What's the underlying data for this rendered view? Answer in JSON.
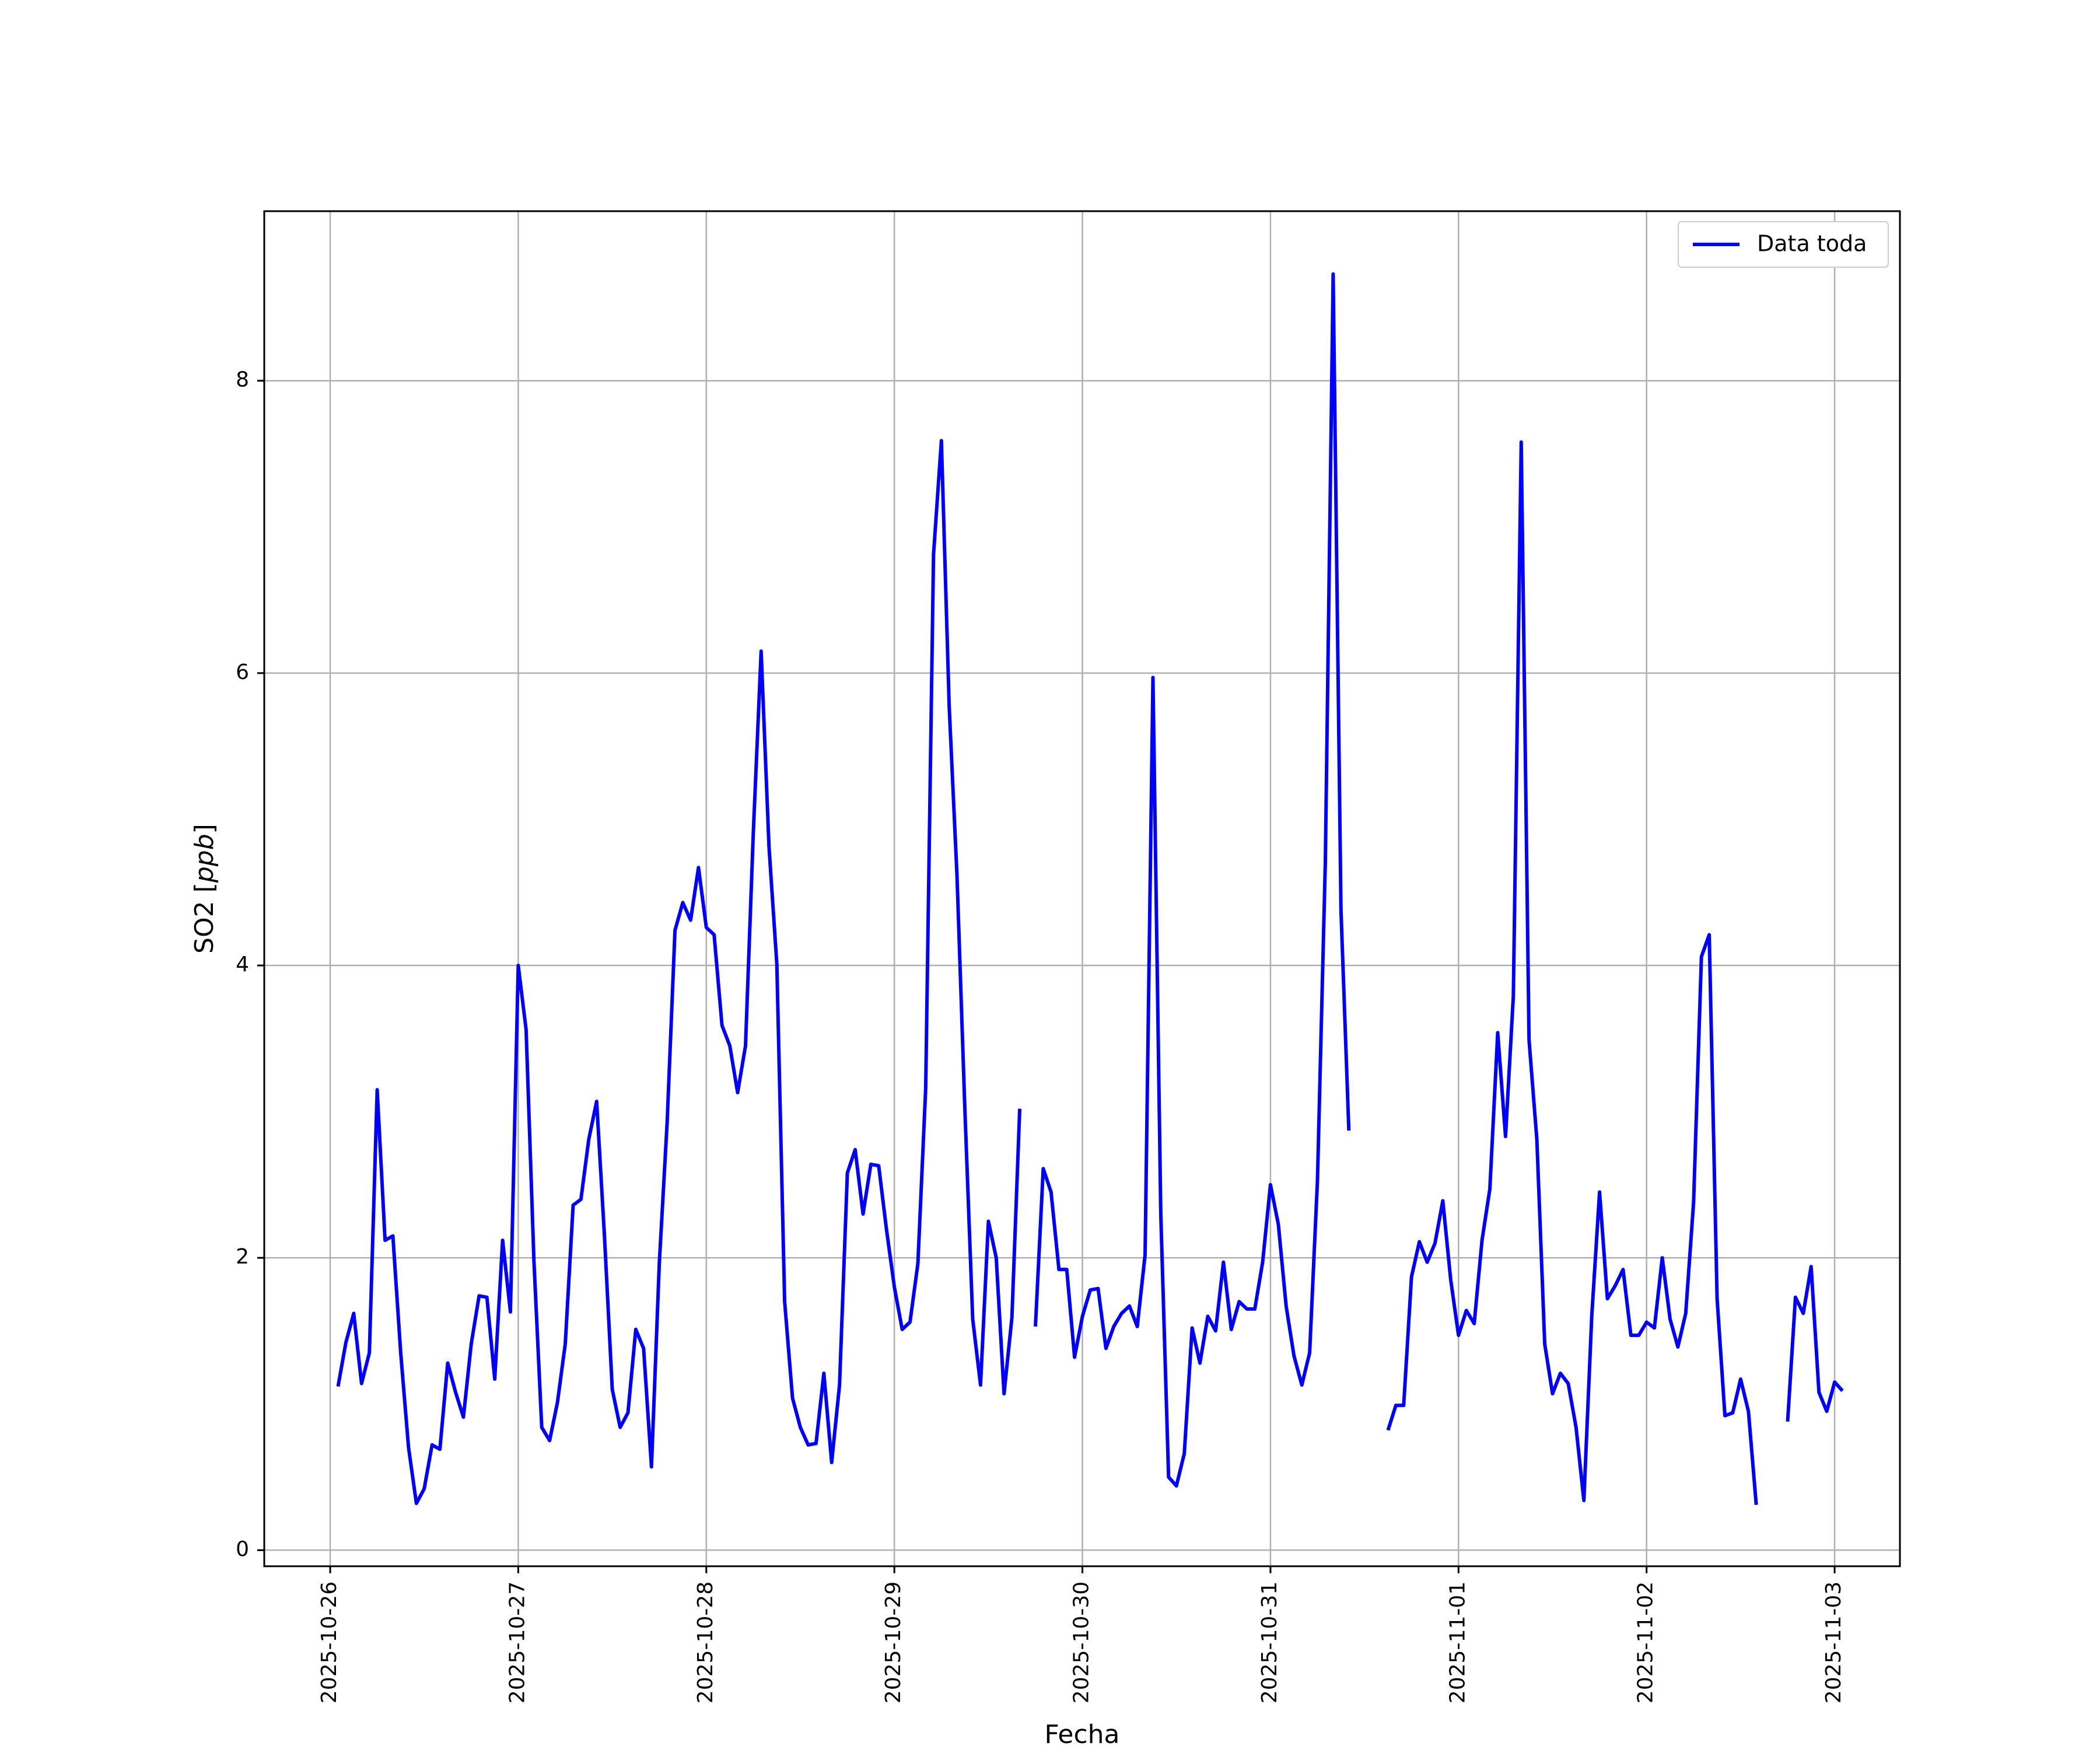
{
  "chart_data": {
    "type": "line",
    "xlabel": "Fecha",
    "ylabel": "SO2 [ppb]",
    "ylabel_parts": {
      "plain": "SO2 [",
      "italic": "ppb",
      "close": "]"
    },
    "x_tick_labels": [
      "2025-10-26",
      "2025-10-27",
      "2025-10-28",
      "2025-10-29",
      "2025-10-30",
      "2025-10-31",
      "2025-11-01",
      "2025-11-02",
      "2025-11-03"
    ],
    "y_ticks": [
      0,
      2,
      4,
      6,
      8
    ],
    "y_tick_labels": [
      "0",
      "2",
      "4",
      "6",
      "8"
    ],
    "xlim": [
      "2025-10-25T15:35",
      "2025-11-03T08:20"
    ],
    "ylim": [
      -0.11,
      9.16
    ],
    "grid": true,
    "legend_position": "upper right",
    "colors": {
      "series": "#0000ff",
      "grid": "#b0b0b0",
      "axes": "#000000"
    },
    "series": [
      {
        "name": "Data toda",
        "color": "#0000ff",
        "segments": [
          {
            "x": [
              "2025-10-26T01:00",
              "2025-10-26T02:00",
              "2025-10-26T03:00",
              "2025-10-26T04:00",
              "2025-10-26T05:00",
              "2025-10-26T06:00",
              "2025-10-26T07:00",
              "2025-10-26T08:00",
              "2025-10-26T09:00",
              "2025-10-26T10:00",
              "2025-10-26T11:00",
              "2025-10-26T12:00",
              "2025-10-26T13:00",
              "2025-10-26T14:00",
              "2025-10-26T15:00",
              "2025-10-26T16:00",
              "2025-10-26T17:00",
              "2025-10-26T18:00",
              "2025-10-26T19:00",
              "2025-10-26T20:00",
              "2025-10-26T21:00",
              "2025-10-26T22:00",
              "2025-10-26T23:00",
              "2025-10-27T00:00",
              "2025-10-27T01:00",
              "2025-10-27T02:00",
              "2025-10-27T03:00",
              "2025-10-27T04:00",
              "2025-10-27T05:00",
              "2025-10-27T06:00",
              "2025-10-27T07:00",
              "2025-10-27T08:00",
              "2025-10-27T09:00",
              "2025-10-27T10:00",
              "2025-10-27T11:00",
              "2025-10-27T12:00",
              "2025-10-27T13:00",
              "2025-10-27T14:00",
              "2025-10-27T15:00",
              "2025-10-27T16:00",
              "2025-10-27T17:00",
              "2025-10-27T18:00",
              "2025-10-27T19:00",
              "2025-10-27T20:00",
              "2025-10-27T21:00",
              "2025-10-27T22:00",
              "2025-10-27T23:00",
              "2025-10-28T00:00",
              "2025-10-28T01:00",
              "2025-10-28T02:00",
              "2025-10-28T03:00",
              "2025-10-28T04:00",
              "2025-10-28T05:00",
              "2025-10-28T06:00",
              "2025-10-28T07:00",
              "2025-10-28T08:00",
              "2025-10-28T09:00",
              "2025-10-28T10:00",
              "2025-10-28T11:00",
              "2025-10-28T12:00",
              "2025-10-28T13:00",
              "2025-10-28T14:00",
              "2025-10-28T15:00",
              "2025-10-28T16:00",
              "2025-10-28T17:00",
              "2025-10-28T18:00",
              "2025-10-28T19:00",
              "2025-10-28T20:00",
              "2025-10-28T21:00",
              "2025-10-28T22:00",
              "2025-10-28T23:00",
              "2025-10-29T00:00",
              "2025-10-29T01:00",
              "2025-10-29T02:00",
              "2025-10-29T03:00",
              "2025-10-29T04:00",
              "2025-10-29T05:00",
              "2025-10-29T06:00",
              "2025-10-29T07:00",
              "2025-10-29T08:00",
              "2025-10-29T09:00",
              "2025-10-29T10:00",
              "2025-10-29T11:00",
              "2025-10-29T12:00",
              "2025-10-29T13:00",
              "2025-10-29T14:00",
              "2025-10-29T15:00",
              "2025-10-29T16:00"
            ],
            "y": [
              1.12,
              1.42,
              1.62,
              1.14,
              1.35,
              3.15,
              2.12,
              2.15,
              1.35,
              0.7,
              0.32,
              0.42,
              0.72,
              0.69,
              1.28,
              1.08,
              0.91,
              1.41,
              1.74,
              1.73,
              1.17,
              2.12,
              1.63,
              4.0,
              3.56,
              1.98,
              0.84,
              0.75,
              1.01,
              1.41,
              2.36,
              2.4,
              2.81,
              3.07,
              2.15,
              1.1,
              0.84,
              0.94,
              1.51,
              1.38,
              0.57,
              1.96,
              2.92,
              4.24,
              4.43,
              4.31,
              4.67,
              4.26,
              4.21,
              3.59,
              3.45,
              3.13,
              3.45,
              4.91,
              6.15,
              4.81,
              4.01,
              1.7,
              1.04,
              0.84,
              0.72,
              0.73,
              1.21,
              0.6,
              1.13,
              2.58,
              2.74,
              2.3,
              2.64,
              2.63,
              2.19,
              1.8,
              1.51,
              1.56,
              1.96,
              3.16,
              6.81,
              7.59,
              5.77,
              4.61,
              3.01,
              1.58,
              1.13,
              2.25,
              2.0,
              1.07,
              1.59,
              3.02
            ]
          },
          {
            "x": [
              "2025-10-29T18:00",
              "2025-10-29T19:00",
              "2025-10-29T20:00",
              "2025-10-29T21:00",
              "2025-10-29T22:00",
              "2025-10-29T23:00",
              "2025-10-30T00:00",
              "2025-10-30T01:00",
              "2025-10-30T02:00",
              "2025-10-30T03:00",
              "2025-10-30T04:00",
              "2025-10-30T05:00",
              "2025-10-30T06:00",
              "2025-10-30T07:00",
              "2025-10-30T08:00",
              "2025-10-30T09:00",
              "2025-10-30T10:00",
              "2025-10-30T11:00",
              "2025-10-30T12:00",
              "2025-10-30T13:00",
              "2025-10-30T14:00",
              "2025-10-30T15:00",
              "2025-10-30T16:00",
              "2025-10-30T17:00",
              "2025-10-30T18:00",
              "2025-10-30T19:00",
              "2025-10-30T20:00",
              "2025-10-30T21:00",
              "2025-10-30T22:00",
              "2025-10-30T23:00",
              "2025-10-31T00:00",
              "2025-10-31T01:00",
              "2025-10-31T02:00",
              "2025-10-31T03:00",
              "2025-10-31T04:00",
              "2025-10-31T05:00",
              "2025-10-31T06:00",
              "2025-10-31T07:00",
              "2025-10-31T08:00",
              "2025-10-31T09:00",
              "2025-10-31T10:00"
            ],
            "y": [
              1.53,
              2.61,
              2.45,
              1.92,
              1.92,
              1.32,
              1.6,
              1.78,
              1.79,
              1.38,
              1.53,
              1.62,
              1.67,
              1.53,
              2.02,
              5.97,
              2.3,
              0.5,
              0.44,
              0.66,
              1.52,
              1.28,
              1.6,
              1.5,
              1.97,
              1.51,
              1.7,
              1.65,
              1.65,
              1.97,
              2.5,
              2.23,
              1.67,
              1.33,
              1.13,
              1.35,
              2.53,
              4.71,
              8.73,
              4.38,
              2.87
            ]
          },
          {
            "x": [
              "2025-10-31T15:00",
              "2025-10-31T16:00",
              "2025-10-31T17:00",
              "2025-10-31T18:00",
              "2025-10-31T19:00",
              "2025-10-31T20:00",
              "2025-10-31T21:00",
              "2025-10-31T22:00",
              "2025-10-31T23:00",
              "2025-11-01T00:00",
              "2025-11-01T01:00",
              "2025-11-01T02:00",
              "2025-11-01T03:00",
              "2025-11-01T04:00",
              "2025-11-01T05:00",
              "2025-11-01T06:00",
              "2025-11-01T07:00",
              "2025-11-01T08:00",
              "2025-11-01T09:00",
              "2025-11-01T10:00",
              "2025-11-01T11:00",
              "2025-11-01T12:00",
              "2025-11-01T13:00",
              "2025-11-01T14:00",
              "2025-11-01T15:00",
              "2025-11-01T16:00",
              "2025-11-01T17:00",
              "2025-11-01T18:00",
              "2025-11-01T19:00",
              "2025-11-01T20:00",
              "2025-11-01T21:00",
              "2025-11-01T22:00",
              "2025-11-01T23:00",
              "2025-11-02T00:00",
              "2025-11-02T01:00",
              "2025-11-02T02:00",
              "2025-11-02T03:00",
              "2025-11-02T04:00",
              "2025-11-02T05:00",
              "2025-11-02T06:00",
              "2025-11-02T07:00",
              "2025-11-02T08:00",
              "2025-11-02T09:00",
              "2025-11-02T10:00",
              "2025-11-02T11:00",
              "2025-11-02T12:00",
              "2025-11-02T13:00",
              "2025-11-02T14:00"
            ],
            "y": [
              0.82,
              0.99,
              0.99,
              1.87,
              2.11,
              1.97,
              2.1,
              2.39,
              1.85,
              1.47,
              1.64,
              1.55,
              2.12,
              2.47,
              3.54,
              2.83,
              3.79,
              7.58,
              3.49,
              2.81,
              1.41,
              1.07,
              1.21,
              1.14,
              0.84,
              0.34,
              1.6,
              2.45,
              1.72,
              1.81,
              1.92,
              1.47,
              1.47,
              1.56,
              1.52,
              2.0,
              1.58,
              1.39,
              1.62,
              2.38,
              4.06,
              4.21,
              1.72,
              0.92,
              0.94,
              1.17,
              0.95,
              0.31
            ]
          },
          {
            "x": [
              "2025-11-02T18:00",
              "2025-11-02T19:00",
              "2025-11-02T20:00",
              "2025-11-02T21:00",
              "2025-11-02T22:00",
              "2025-11-02T23:00",
              "2025-11-03T00:00",
              "2025-11-03T01:00"
            ],
            "y": [
              0.88,
              1.73,
              1.62,
              1.94,
              1.08,
              0.95,
              1.15,
              1.09
            ]
          }
        ]
      }
    ]
  }
}
